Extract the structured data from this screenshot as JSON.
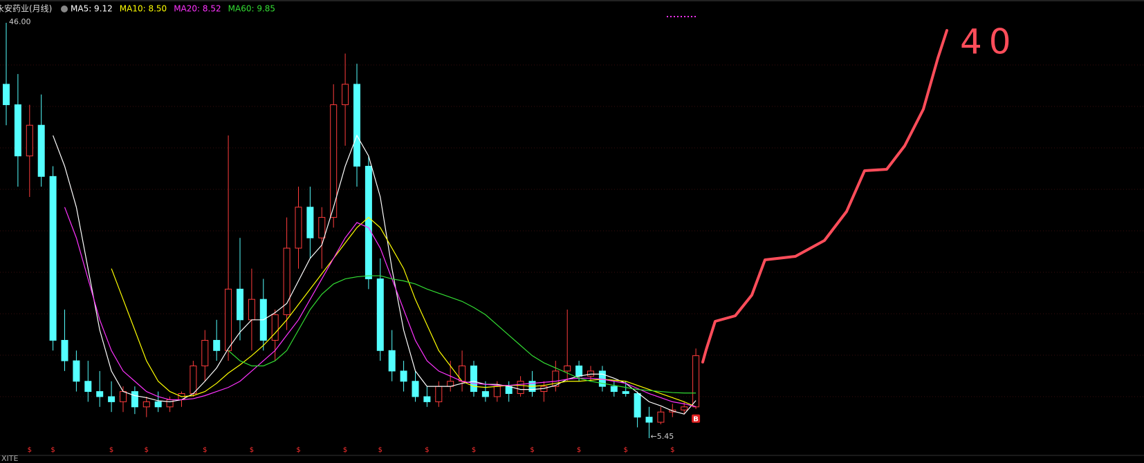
{
  "chart_data": {
    "type": "candlestick",
    "title": "永安药业(月线)",
    "ylim": [
      5.45,
      46
    ],
    "up_color": "#ff3c3c",
    "down_color": "#54ffff",
    "open": [
      40,
      38,
      33,
      36,
      31,
      15,
      13,
      11,
      10,
      9.5,
      9,
      10,
      8.5,
      9,
      8.5,
      9.2,
      9.8,
      12.5,
      15,
      14,
      20,
      17,
      19,
      15,
      17.5,
      24,
      28,
      25,
      27,
      38,
      40,
      32,
      21,
      14,
      12,
      11,
      9.5,
      9,
      10.5,
      11,
      12.5,
      10,
      9.5,
      10.5,
      9.8,
      11,
      10,
      10.5,
      12,
      12.5,
      11.5,
      12,
      10.5,
      10,
      9.8,
      7.5,
      7,
      8,
      8.2,
      8.5
    ],
    "high": [
      46,
      41,
      38,
      39,
      32,
      18,
      14,
      13,
      12,
      11,
      10.5,
      10.5,
      9.5,
      10,
      9.5,
      10,
      13,
      16,
      17,
      35,
      25,
      22,
      21,
      18,
      27,
      30,
      30,
      28,
      40,
      43,
      42,
      33,
      23,
      16,
      13,
      12,
      10.5,
      11,
      13,
      14,
      13,
      11,
      11,
      11,
      11.5,
      12,
      11,
      13,
      18,
      13,
      12.5,
      12.5,
      11,
      11,
      10,
      8.5,
      8.5,
      8.8,
      9,
      14.2
    ],
    "low": [
      36,
      30,
      29,
      30,
      14,
      12,
      10,
      9,
      8.5,
      8,
      8,
      7.8,
      7.5,
      8,
      8,
      8.5,
      9.5,
      11,
      13,
      13,
      15,
      14,
      14,
      13,
      16,
      22,
      23,
      22,
      26,
      34,
      30,
      20,
      13,
      11,
      10,
      9,
      8.5,
      8.5,
      10,
      10,
      9.5,
      9,
      9,
      9,
      9.5,
      9.5,
      9,
      10,
      11,
      11,
      11,
      10,
      9.5,
      9.5,
      6.5,
      5.45,
      6.8,
      7.5,
      7.8,
      8.3
    ],
    "close": [
      38,
      33,
      36,
      31,
      15,
      13,
      11,
      10,
      9.5,
      9,
      10,
      8.5,
      9,
      8.5,
      9.2,
      9.8,
      12.5,
      15,
      14,
      20,
      17,
      19,
      15,
      17.5,
      24,
      28,
      25,
      27,
      38,
      40,
      32,
      21,
      14,
      12,
      11,
      9.5,
      9,
      10.5,
      11,
      12.5,
      10,
      9.5,
      10.5,
      9.8,
      11,
      10,
      10.5,
      12,
      12.5,
      11.5,
      12,
      10.5,
      10,
      9.8,
      7.5,
      7,
      8,
      8.2,
      8.5,
      13.5
    ],
    "series": [
      {
        "label": "MA5: 9.12",
        "color": "#ffffff",
        "values": [
          null,
          null,
          null,
          null,
          35,
          32,
          28,
          22,
          16,
          12,
          10,
          9.6,
          9.4,
          9.1,
          9,
          9.2,
          9.8,
          11,
          12.3,
          14.2,
          15.8,
          17,
          17,
          17.7,
          18.6,
          20.8,
          23,
          24.3,
          28,
          32,
          35,
          33,
          29,
          22,
          16,
          12,
          10.5,
          10.5,
          10.5,
          10.8,
          11,
          10.7,
          10.7,
          10.5,
          10.2,
          10.2,
          10.3,
          10.6,
          11.2,
          11.5,
          11.7,
          11.7,
          11.3,
          10.8,
          9.9,
          9,
          8.6,
          8.1,
          7.8,
          9.12
        ]
      },
      {
        "label": "MA10: 8.50",
        "color": "#ffff00",
        "values": [
          null,
          null,
          null,
          null,
          null,
          null,
          null,
          null,
          null,
          22,
          19,
          16,
          13,
          11,
          10,
          9.5,
          9.6,
          10,
          10.8,
          11.8,
          12.6,
          13.5,
          14.5,
          15.7,
          17,
          18.5,
          20,
          21.5,
          23,
          24.5,
          26,
          27,
          26,
          24,
          22,
          19,
          16.5,
          14,
          12.5,
          11,
          10.5,
          10.4,
          10.5,
          10.6,
          10.6,
          10.5,
          10.6,
          10.8,
          11,
          11,
          11.1,
          11.2,
          11.1,
          11,
          10.6,
          10.2,
          9.8,
          9.4,
          9,
          8.5
        ]
      },
      {
        "label": "MA20: 8.52",
        "color": "#ff33ff",
        "values": [
          null,
          null,
          null,
          null,
          null,
          28,
          25,
          21,
          17,
          14,
          12,
          11,
          10,
          9.5,
          9.2,
          9.2,
          9.3,
          9.6,
          10,
          10.4,
          11,
          12,
          13,
          14,
          15.5,
          17,
          19,
          21,
          23,
          25,
          26.5,
          26,
          24,
          21,
          18,
          15,
          13,
          12,
          11.5,
          11,
          10.8,
          10.7,
          10.6,
          10.6,
          10.7,
          10.8,
          10.9,
          11,
          11.2,
          11.3,
          11.3,
          11.2,
          11,
          10.8,
          10.3,
          9.8,
          9.4,
          9,
          8.8,
          8.52
        ]
      },
      {
        "label": "MA60: 9.85",
        "color": "#33dd33",
        "values": [
          null,
          null,
          null,
          null,
          null,
          null,
          null,
          null,
          null,
          null,
          null,
          null,
          null,
          null,
          null,
          null,
          null,
          null,
          null,
          14,
          13,
          12.5,
          12.5,
          13,
          14,
          16,
          18,
          19.5,
          20.5,
          21,
          21.2,
          21.3,
          21.3,
          21,
          20.8,
          20.5,
          20,
          19.6,
          19.2,
          18.8,
          18.2,
          17.5,
          16.5,
          15.5,
          14.5,
          13.5,
          12.8,
          12.3,
          11.8,
          11.3,
          11,
          10.8,
          10.6,
          10.4,
          10.2,
          10.1,
          10,
          9.9,
          9.85,
          9.85
        ]
      }
    ],
    "max_label": "46.00",
    "max_index": 0,
    "min_label": "←5.45",
    "min_index": 55,
    "buy_label": "B",
    "buy_index": 59,
    "dividend_label": "$",
    "dividend_indices": [
      2,
      4,
      9,
      12,
      17,
      21,
      25,
      29,
      32,
      36,
      40,
      45,
      49,
      53,
      57
    ],
    "annotation": "40",
    "bottom_label": "XITE"
  }
}
